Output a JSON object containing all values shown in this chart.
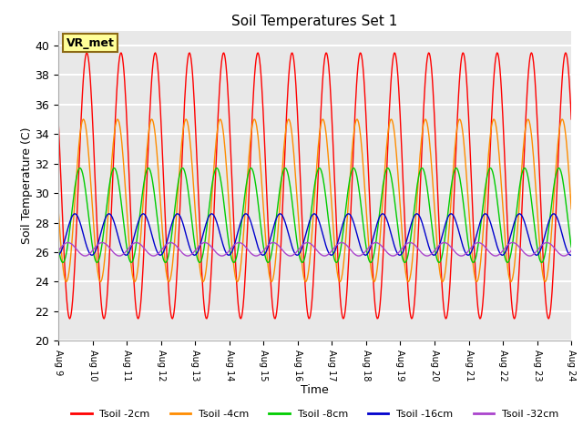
{
  "title": "Soil Temperatures Set 1",
  "xlabel": "Time",
  "ylabel": "Soil Temperature (C)",
  "ylim": [
    20,
    41
  ],
  "yticks": [
    20,
    22,
    24,
    26,
    28,
    30,
    32,
    34,
    36,
    38,
    40
  ],
  "x_start_day": 9,
  "x_end_day": 24,
  "n_days": 15,
  "annotation_text": "VR_met",
  "annotation_bg": "#FFFF99",
  "annotation_border": "#8B6914",
  "series": [
    {
      "label": "Tsoil -2cm",
      "color": "#FF0000",
      "amplitude": 9.0,
      "mean": 30.5,
      "phase_shift": 0.0,
      "period": 1.0
    },
    {
      "label": "Tsoil -4cm",
      "color": "#FF8C00",
      "amplitude": 5.5,
      "mean": 29.5,
      "phase_shift": 0.1,
      "period": 1.0
    },
    {
      "label": "Tsoil -8cm",
      "color": "#00CC00",
      "amplitude": 3.2,
      "mean": 28.5,
      "phase_shift": 0.2,
      "period": 1.0
    },
    {
      "label": "Tsoil -16cm",
      "color": "#0000CC",
      "amplitude": 1.4,
      "mean": 27.2,
      "phase_shift": 0.35,
      "period": 1.0
    },
    {
      "label": "Tsoil -32cm",
      "color": "#AA44CC",
      "amplitude": 0.45,
      "mean": 26.2,
      "phase_shift": 0.55,
      "period": 1.0
    }
  ],
  "bg_color": "#E8E8E8",
  "grid_color": "#FFFFFF",
  "xtick_labels": [
    "Aug 9",
    "Aug 10",
    "Aug 11",
    "Aug 12",
    "Aug 13",
    "Aug 14",
    "Aug 15",
    "Aug 16",
    "Aug 17",
    "Aug 18",
    "Aug 19",
    "Aug 20",
    "Aug 21",
    "Aug 22",
    "Aug 23",
    "Aug 24"
  ],
  "xtick_positions": [
    9,
    10,
    11,
    12,
    13,
    14,
    15,
    16,
    17,
    18,
    19,
    20,
    21,
    22,
    23,
    24
  ]
}
